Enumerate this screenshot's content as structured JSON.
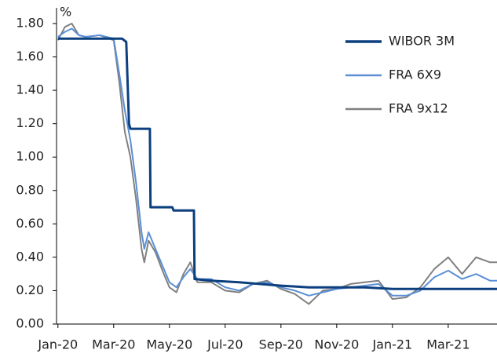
{
  "chart_data": {
    "type": "line",
    "y_label": "%",
    "xlim": [
      -0.05,
      15.75
    ],
    "xticks": [
      {
        "value": 0,
        "label": "Jan-20"
      },
      {
        "value": 2,
        "label": "Mar-20"
      },
      {
        "value": 4,
        "label": "May-20"
      },
      {
        "value": 6,
        "label": "Jul-20"
      },
      {
        "value": 8,
        "label": "Sep-20"
      },
      {
        "value": 10,
        "label": "Nov-20"
      },
      {
        "value": 12,
        "label": "Jan-21"
      },
      {
        "value": 14,
        "label": "Mar-21"
      }
    ],
    "ylim": [
      0,
      1.8
    ],
    "yticks": [
      {
        "value": 0,
        "label": "0.00"
      },
      {
        "value": 0.2,
        "label": "0.20"
      },
      {
        "value": 0.4,
        "label": "0.40"
      },
      {
        "value": 0.6,
        "label": "0.60"
      },
      {
        "value": 0.8,
        "label": "0.80"
      },
      {
        "value": 1,
        "label": "1.00"
      },
      {
        "value": 1.2,
        "label": "1.20"
      },
      {
        "value": 1.4,
        "label": "1.40"
      },
      {
        "value": 1.6,
        "label": "1.60"
      },
      {
        "value": 1.8,
        "label": "1.80"
      }
    ],
    "grid": false,
    "legend": "upper right",
    "series": [
      {
        "name": "WIBOR 3M",
        "color": "#0b3f7e",
        "width": 3,
        "x": [
          0,
          2.3,
          2.45,
          2.55,
          2.6,
          3.3,
          3.32,
          4.1,
          4.15,
          4.88,
          4.9,
          5.5,
          6.5,
          8,
          9,
          10,
          11,
          12,
          13,
          14,
          15,
          15.75
        ],
        "values": [
          1.71,
          1.71,
          1.69,
          1.2,
          1.17,
          1.17,
          0.7,
          0.7,
          0.68,
          0.68,
          0.27,
          0.26,
          0.25,
          0.23,
          0.22,
          0.22,
          0.22,
          0.21,
          0.21,
          0.21,
          0.21,
          0.21
        ]
      },
      {
        "name": "FRA 6X9",
        "color": "#5b8fd6",
        "width": 2,
        "x": [
          0,
          0.25,
          0.5,
          0.75,
          1,
          1.5,
          2,
          2.2,
          2.4,
          2.6,
          2.8,
          3,
          3.1,
          3.25,
          3.5,
          3.75,
          4,
          4.25,
          4.5,
          4.75,
          5,
          5.5,
          6,
          6.5,
          7,
          7.5,
          8,
          8.5,
          9,
          9.5,
          10,
          10.5,
          11,
          11.5,
          12,
          12.5,
          13,
          13.5,
          14,
          14.5,
          15,
          15.5,
          15.75
        ],
        "values": [
          1.72,
          1.75,
          1.77,
          1.73,
          1.72,
          1.73,
          1.71,
          1.5,
          1.28,
          1.1,
          0.85,
          0.55,
          0.45,
          0.55,
          0.45,
          0.35,
          0.25,
          0.22,
          0.28,
          0.33,
          0.27,
          0.27,
          0.22,
          0.2,
          0.24,
          0.25,
          0.22,
          0.2,
          0.17,
          0.19,
          0.21,
          0.22,
          0.23,
          0.24,
          0.17,
          0.17,
          0.2,
          0.28,
          0.32,
          0.27,
          0.3,
          0.26,
          0.26
        ]
      },
      {
        "name": "FRA 9x12",
        "color": "#808080",
        "width": 2,
        "x": [
          0,
          0.25,
          0.5,
          0.75,
          1,
          1.5,
          2,
          2.2,
          2.4,
          2.6,
          2.8,
          3,
          3.1,
          3.25,
          3.5,
          3.75,
          4,
          4.25,
          4.5,
          4.75,
          5,
          5.5,
          6,
          6.5,
          7,
          7.5,
          8,
          8.5,
          9,
          9.5,
          10,
          10.5,
          11,
          11.5,
          12,
          12.5,
          13,
          13.5,
          14,
          14.5,
          15,
          15.5,
          15.75
        ],
        "values": [
          1.7,
          1.78,
          1.8,
          1.73,
          1.72,
          1.73,
          1.7,
          1.45,
          1.15,
          1.0,
          0.75,
          0.45,
          0.37,
          0.5,
          0.43,
          0.32,
          0.22,
          0.19,
          0.3,
          0.37,
          0.25,
          0.25,
          0.2,
          0.19,
          0.24,
          0.26,
          0.21,
          0.18,
          0.12,
          0.2,
          0.21,
          0.24,
          0.25,
          0.26,
          0.15,
          0.16,
          0.22,
          0.33,
          0.4,
          0.3,
          0.4,
          0.37,
          0.37
        ]
      }
    ]
  }
}
